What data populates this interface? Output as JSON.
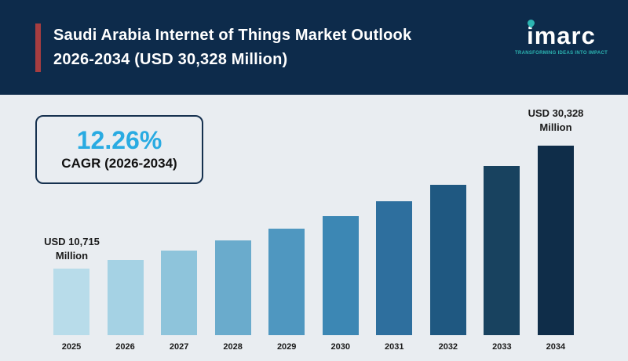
{
  "header": {
    "title_line1": "Saudi Arabia Internet of Things Market Outlook",
    "title_line2": "2026-2034 (USD 30,328 Million)",
    "logo": {
      "text": "imarc",
      "tagline": "TRANSFORMING IDEAS INTO IMPACT"
    },
    "colors": {
      "background": "#0d2b4b",
      "accent_bar": "#a63d40",
      "tagline": "#2cb5b2"
    }
  },
  "cagr_box": {
    "value": "12.26%",
    "label": "CAGR (2026-2034)",
    "value_color": "#29abe2"
  },
  "annotations": {
    "start": {
      "line1": "USD 10,715",
      "line2": "Million"
    },
    "end": {
      "line1": "USD 30,328",
      "line2": "Million"
    }
  },
  "chart_data": {
    "type": "bar",
    "title": "Saudi Arabia Internet of Things Market Outlook 2026-2034 (USD 30,328 Million)",
    "unit": "USD Million",
    "categories": [
      "2025",
      "2026",
      "2027",
      "2028",
      "2029",
      "2030",
      "2031",
      "2032",
      "2033",
      "2034"
    ],
    "values": [
      10715,
      12029,
      13504,
      15160,
      17019,
      19106,
      21448,
      24078,
      27031,
      30328
    ],
    "labeled_points": {
      "2025": "USD 10,715 Million",
      "2034": "USD 30,328 Million"
    },
    "cagr": "12.26%",
    "ylim": [
      0,
      30328
    ],
    "grid": false,
    "legend": false,
    "bar_colors": [
      "#b8dcea",
      "#a5d2e4",
      "#8ec4db",
      "#6aabcc",
      "#4f97c0",
      "#3c87b4",
      "#2e6f9e",
      "#1f5881",
      "#18425f",
      "#0f2d49"
    ]
  }
}
